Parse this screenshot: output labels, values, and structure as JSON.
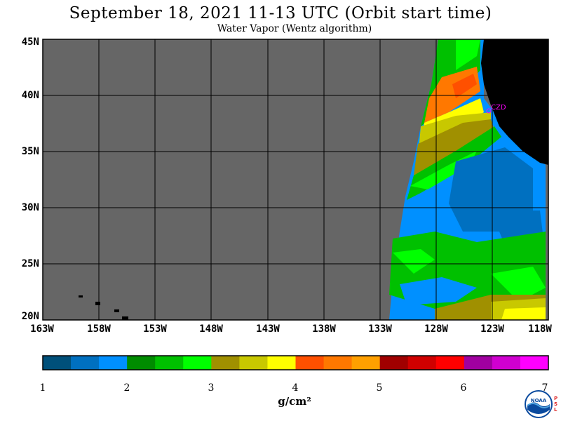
{
  "header": {
    "title": "September 18, 2021  11-13 UTC  (Orbit start time)",
    "subtitle": "Water Vapor (Wentz algorithm)"
  },
  "axes": {
    "lat_labels": [
      "45N",
      "40N",
      "35N",
      "30N",
      "25N",
      "20N"
    ],
    "lon_labels": [
      "163W",
      "158W",
      "153W",
      "148W",
      "143W",
      "138W",
      "133W",
      "128W",
      "123W",
      "118W"
    ],
    "lat_range": [
      20,
      45
    ],
    "lon_range": [
      -163,
      -118
    ],
    "grid": true
  },
  "map": {
    "no_data_color": "#666666",
    "land_color": "#000000",
    "station_label": "CZD",
    "station_color": "#ff00ff"
  },
  "colorbar": {
    "colors": [
      "#00507a",
      "#0070c0",
      "#0090ff",
      "#008c00",
      "#00c000",
      "#00ff00",
      "#a09000",
      "#c8c800",
      "#ffff00",
      "#ff5000",
      "#ff7800",
      "#ffa000",
      "#a00000",
      "#d00000",
      "#ff0000",
      "#a000a0",
      "#d000d0",
      "#ff00ff"
    ],
    "tick_labels": [
      "1",
      "2",
      "3",
      "4",
      "5",
      "6",
      "7"
    ],
    "units": "g/cm²"
  },
  "logo": {
    "text": "NOAA",
    "psl_text": "PSL"
  }
}
